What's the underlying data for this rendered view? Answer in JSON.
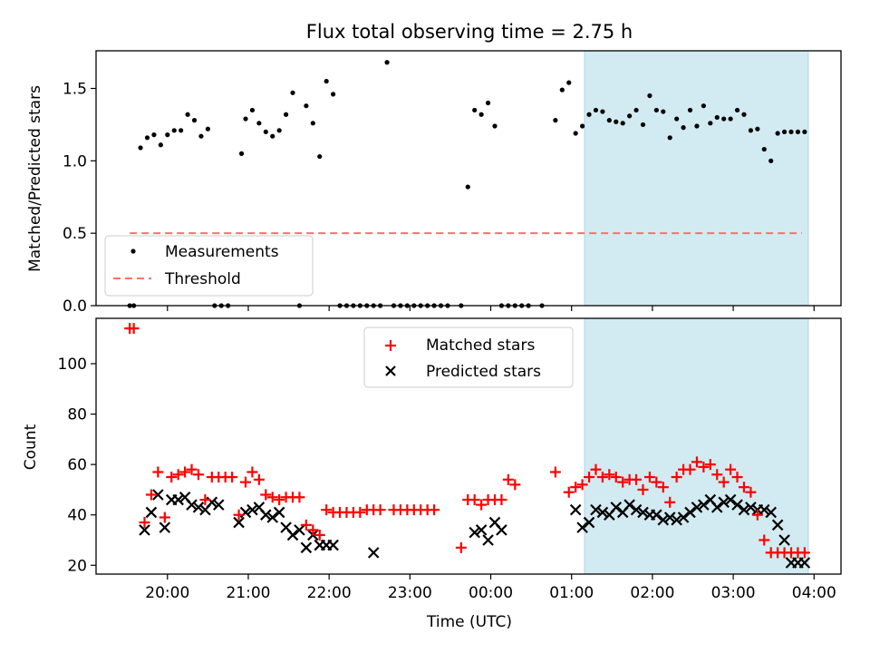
{
  "title": "Flux total observing time = 2.75 h",
  "colors": {
    "match": "#ff0000",
    "pred": "#000000",
    "meas": "#000000",
    "threshold": "#ff6f6f",
    "span": "#add8e6"
  },
  "chart_data": [
    {
      "type": "scatter",
      "title": "Flux total observing time = 2.75 h",
      "xlabel": "",
      "ylabel": "Matched/Predicted stars",
      "xlim": [
        "19:07",
        "04:20"
      ],
      "ylim": [
        0,
        1.76
      ],
      "yticks": [
        "0.0",
        "0.5",
        "1.0",
        "1.5"
      ],
      "legend": {
        "position": "lower-left",
        "entries": [
          "Measurements",
          "Threshold"
        ]
      },
      "threshold": {
        "name": "Threshold",
        "y": 0.5,
        "x_start": "19:32",
        "x_end": "03:51"
      },
      "highlight_span": [
        "01:05",
        "03:51"
      ],
      "series": [
        {
          "name": "Measurements",
          "x": [
            "19:32",
            "19:35",
            "19:40",
            "19:45",
            "19:50",
            "19:55",
            "20:00",
            "20:05",
            "20:10",
            "20:15",
            "20:20",
            "20:25",
            "20:30",
            "20:35",
            "20:40",
            "20:45",
            "20:55",
            "20:58",
            "21:03",
            "21:08",
            "21:13",
            "21:18",
            "21:23",
            "21:28",
            "21:33",
            "21:38",
            "21:43",
            "21:48",
            "21:53",
            "21:58",
            "22:03",
            "22:08",
            "22:13",
            "22:18",
            "22:23",
            "22:28",
            "22:33",
            "22:38",
            "22:43",
            "22:48",
            "22:53",
            "22:58",
            "23:03",
            "23:08",
            "23:13",
            "23:18",
            "23:23",
            "23:28",
            "23:38",
            "23:43",
            "23:48",
            "23:53",
            "23:58",
            "00:03",
            "00:08",
            "00:13",
            "00:18",
            "00:23",
            "00:28",
            "00:38",
            "00:48",
            "00:53",
            "00:58",
            "01:03",
            "01:08",
            "01:13",
            "01:18",
            "01:23",
            "01:28",
            "01:33",
            "01:38",
            "01:43",
            "01:48",
            "01:53",
            "01:58",
            "02:03",
            "02:08",
            "02:13",
            "02:18",
            "02:23",
            "02:28",
            "02:33",
            "02:38",
            "02:43",
            "02:48",
            "02:53",
            "02:58",
            "03:03",
            "03:08",
            "03:13",
            "03:18",
            "03:23",
            "03:28",
            "03:33",
            "03:38",
            "03:43",
            "03:48",
            "03:53"
          ],
          "y": [
            0,
            0,
            1.09,
            1.16,
            1.18,
            1.11,
            1.18,
            1.21,
            1.21,
            1.32,
            1.28,
            1.17,
            1.22,
            0,
            0,
            0,
            1.05,
            1.29,
            1.35,
            1.26,
            1.2,
            1.17,
            1.21,
            1.32,
            1.47,
            0,
            1.38,
            1.26,
            1.03,
            1.55,
            1.46,
            0,
            0,
            0,
            0,
            0,
            0,
            0,
            1.68,
            0,
            0,
            0,
            0,
            0,
            0,
            0,
            0,
            0,
            0,
            0.82,
            1.35,
            1.32,
            1.4,
            1.24,
            0,
            0,
            0,
            0,
            0,
            0,
            1.28,
            1.49,
            1.54,
            1.19,
            1.24,
            1.32,
            1.35,
            1.34,
            1.28,
            1.27,
            1.26,
            1.31,
            1.35,
            1.25,
            1.45,
            1.35,
            1.34,
            1.16,
            1.29,
            1.23,
            1.35,
            1.24,
            1.38,
            1.26,
            1.3,
            1.29,
            1.29,
            1.35,
            1.32,
            1.21,
            1.22,
            1.08,
            1.0,
            1.19,
            1.2,
            1.2,
            1.2,
            1.2
          ]
        }
      ]
    },
    {
      "type": "scatter",
      "title": "",
      "xlabel": "Time (UTC)",
      "ylabel": "Count",
      "xlim": [
        "19:07",
        "04:20"
      ],
      "ylim": [
        16.5,
        118
      ],
      "xticks": [
        "20:00",
        "21:00",
        "22:00",
        "23:00",
        "00:00",
        "01:00",
        "02:00",
        "03:00",
        "04:00"
      ],
      "yticks": [
        "20",
        "40",
        "60",
        "80",
        "100"
      ],
      "legend": {
        "position": "top-center",
        "entries": [
          "Matched stars",
          "Predicted stars"
        ]
      },
      "highlight_span": [
        "01:05",
        "03:51"
      ],
      "series": [
        {
          "name": "Matched stars",
          "marker": "plus",
          "x": [
            "19:32",
            "19:35",
            "19:43",
            "19:48",
            "19:53",
            "19:58",
            "20:03",
            "20:08",
            "20:13",
            "20:18",
            "20:23",
            "20:28",
            "20:33",
            "20:38",
            "20:43",
            "20:48",
            "20:53",
            "20:58",
            "21:03",
            "21:08",
            "21:13",
            "21:18",
            "21:23",
            "21:28",
            "21:33",
            "21:38",
            "21:43",
            "21:48",
            "21:53",
            "21:58",
            "22:03",
            "22:08",
            "22:13",
            "22:18",
            "22:23",
            "22:28",
            "22:33",
            "22:38",
            "22:48",
            "22:53",
            "22:58",
            "23:03",
            "23:08",
            "23:13",
            "23:18",
            "23:38",
            "23:43",
            "23:48",
            "23:53",
            "23:58",
            "00:03",
            "00:08",
            "00:13",
            "00:18",
            "00:48",
            "00:58",
            "01:03",
            "01:08",
            "01:13",
            "01:18",
            "01:23",
            "01:28",
            "01:33",
            "01:38",
            "01:43",
            "01:48",
            "01:53",
            "01:58",
            "02:03",
            "02:08",
            "02:13",
            "02:18",
            "02:23",
            "02:28",
            "02:33",
            "02:38",
            "02:43",
            "02:48",
            "02:53",
            "02:58",
            "03:03",
            "03:08",
            "03:13",
            "03:18",
            "03:23",
            "03:28",
            "03:33",
            "03:38",
            "03:43",
            "03:48",
            "03:53"
          ],
          "y": [
            114,
            114,
            37,
            48,
            57,
            39,
            55,
            56,
            57,
            58,
            56,
            46,
            55,
            55,
            55,
            55,
            40,
            53,
            57,
            54,
            48,
            47,
            46,
            47,
            47,
            47,
            36,
            34,
            32,
            42,
            41,
            41,
            41,
            41,
            41,
            42,
            42,
            42,
            42,
            42,
            42,
            42,
            42,
            42,
            42,
            27,
            46,
            46,
            44,
            46,
            46,
            46,
            54,
            52,
            57,
            49,
            51,
            52,
            55,
            58,
            55,
            56,
            55,
            53,
            54,
            54,
            50,
            55,
            53,
            51,
            45,
            55,
            58,
            58,
            61,
            59,
            60,
            56,
            53,
            58,
            55,
            51,
            49,
            40,
            30,
            25,
            25,
            25,
            25,
            25,
            25
          ]
        },
        {
          "name": "Predicted stars",
          "marker": "x",
          "x": [
            "19:43",
            "19:48",
            "19:53",
            "19:58",
            "20:03",
            "20:08",
            "20:13",
            "20:18",
            "20:23",
            "20:28",
            "20:33",
            "20:38",
            "20:53",
            "20:58",
            "21:03",
            "21:08",
            "21:13",
            "21:18",
            "21:23",
            "21:28",
            "21:33",
            "21:38",
            "21:43",
            "21:48",
            "21:53",
            "21:58",
            "22:03",
            "22:33",
            "23:48",
            "23:53",
            "23:58",
            "00:03",
            "00:08",
            "01:03",
            "01:08",
            "01:13",
            "01:18",
            "01:23",
            "01:28",
            "01:33",
            "01:38",
            "01:43",
            "01:48",
            "01:53",
            "01:58",
            "02:03",
            "02:08",
            "02:13",
            "02:18",
            "02:23",
            "02:28",
            "02:33",
            "02:38",
            "02:43",
            "02:48",
            "02:53",
            "02:58",
            "03:03",
            "03:08",
            "03:13",
            "03:18",
            "03:23",
            "03:28",
            "03:33",
            "03:38",
            "03:43",
            "03:48",
            "03:53"
          ],
          "y": [
            34,
            41,
            48,
            35,
            46,
            46,
            47,
            44,
            43,
            42,
            45,
            44,
            37,
            41,
            42,
            43,
            40,
            39,
            41,
            35,
            32,
            34,
            27,
            32,
            28,
            28,
            28,
            25,
            33,
            34,
            30,
            37,
            34,
            42,
            35,
            37,
            42,
            41,
            40,
            43,
            41,
            44,
            42,
            41,
            40,
            40,
            38,
            39,
            38,
            39,
            41,
            43,
            44,
            46,
            43,
            45,
            46,
            44,
            42,
            43,
            42,
            42,
            41,
            36,
            30,
            21,
            21,
            21
          ]
        }
      ]
    }
  ]
}
